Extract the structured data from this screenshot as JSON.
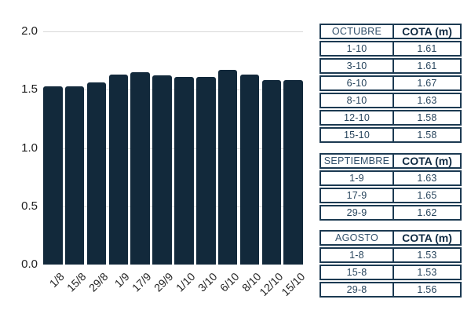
{
  "chart_data": {
    "type": "bar",
    "categories": [
      "1/8",
      "15/8",
      "29/8",
      "1/9",
      "17/9",
      "29/9",
      "1/10",
      "3/10",
      "6/10",
      "8/10",
      "12/10",
      "15/10"
    ],
    "values": [
      1.53,
      1.53,
      1.56,
      1.63,
      1.65,
      1.62,
      1.61,
      1.61,
      1.67,
      1.63,
      1.58,
      1.58
    ],
    "title": "",
    "xlabel": "",
    "ylabel": "",
    "ylim": [
      0,
      2.0
    ],
    "ytick_labels": [
      "0.0",
      "0.5",
      "1.0",
      "1.5",
      "2.0"
    ],
    "ytick_values": [
      0,
      0.5,
      1.0,
      1.5,
      2.0
    ],
    "grid": true,
    "legend": false,
    "bar_color": "#12293b"
  },
  "tables": [
    {
      "id": "octubre",
      "month_header": "OCTUBRE",
      "value_header": "COTA (m)",
      "rows": [
        {
          "date": "1-10",
          "cota": "1.61"
        },
        {
          "date": "3-10",
          "cota": "1.61"
        },
        {
          "date": "6-10",
          "cota": "1.67"
        },
        {
          "date": "8-10",
          "cota": "1.63"
        },
        {
          "date": "12-10",
          "cota": "1.58"
        },
        {
          "date": "15-10",
          "cota": "1.58"
        }
      ]
    },
    {
      "id": "septiembre",
      "month_header": "SEPTIEMBRE",
      "value_header": "COTA (m)",
      "rows": [
        {
          "date": "1-9",
          "cota": "1.63"
        },
        {
          "date": "17-9",
          "cota": "1.65"
        },
        {
          "date": "29-9",
          "cota": "1.62"
        }
      ]
    },
    {
      "id": "agosto",
      "month_header": "AGOSTO",
      "value_header": "COTA (m)",
      "rows": [
        {
          "date": "1-8",
          "cota": "1.53"
        },
        {
          "date": "15-8",
          "cota": "1.53"
        },
        {
          "date": "29-8",
          "cota": "1.56"
        }
      ]
    }
  ],
  "colors": {
    "bar": "#12293b",
    "grid_line": "#d8d8d8",
    "tick_text": "#1f1f1f",
    "table_border": "#1c3a52",
    "month_text": "#33516c",
    "header_text": "#0f2a42",
    "cell_text": "#29465e",
    "background": "#ffffff"
  }
}
